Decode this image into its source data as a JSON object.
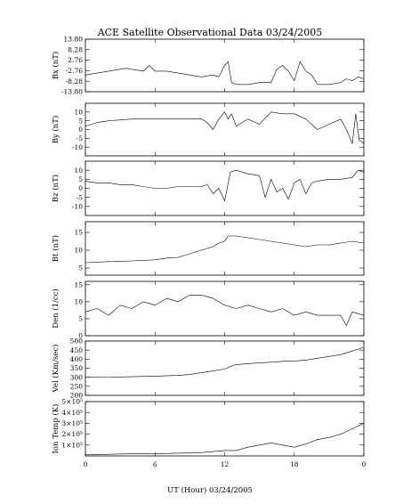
{
  "chart_data": {
    "type": "line",
    "title": "ACE Satellite Observational Data   03/24/2005",
    "xlabel": "UT (Hour)  03/24/2005",
    "x_ticks": [
      "0",
      "6",
      "12",
      "18",
      "0"
    ],
    "xlim": [
      0,
      24
    ],
    "panels": [
      {
        "name": "bx",
        "ylabel": "Bx (nT)",
        "ylim": [
          -13.8,
          13.8
        ],
        "y_ticks": [
          -13.8,
          -8.28,
          -2.76,
          2.76,
          8.28,
          13.8
        ],
        "y_tick_labels": [
          "-13.80",
          "-8.28",
          "-2.76",
          "2.76",
          "8.28",
          "13.80"
        ],
        "x": [
          0,
          1,
          2,
          3,
          3.5,
          4,
          5,
          5.5,
          6,
          7,
          8,
          9,
          10,
          11,
          11.5,
          12,
          12.3,
          12.6,
          13,
          14,
          15,
          16,
          16.5,
          17,
          17.5,
          18,
          18.5,
          19,
          19.5,
          20,
          21,
          22,
          22.5,
          23,
          23.5,
          24
        ],
        "y": [
          -5,
          -4,
          -3,
          -2,
          -1.5,
          -2,
          -3,
          0,
          -3,
          -3,
          -4,
          -5,
          -6,
          -5,
          -6,
          0,
          2,
          -9,
          -10,
          -10,
          -9,
          -9,
          -2,
          0,
          -3,
          -8,
          2,
          -3,
          -5,
          -10,
          -10,
          -9,
          -7,
          -8,
          -6,
          -7
        ]
      },
      {
        "name": "by",
        "ylabel": "By (nT)",
        "ylim": [
          -15,
          15
        ],
        "y_ticks": [
          -10,
          -5,
          0,
          5,
          10
        ],
        "y_tick_labels": [
          "-10",
          "-5",
          "0",
          "5",
          "10"
        ],
        "x": [
          0,
          1,
          2,
          3,
          4,
          5,
          6,
          7,
          8,
          9,
          10,
          10.5,
          11,
          11.5,
          12,
          12.3,
          12.6,
          13,
          14,
          15,
          16,
          17,
          18,
          19,
          20,
          21,
          22,
          22.5,
          23,
          23.3,
          23.6,
          24
        ],
        "y": [
          2,
          4,
          5,
          5.5,
          6,
          6,
          6,
          6,
          6,
          6,
          6,
          4,
          0,
          6,
          10,
          6,
          9,
          2,
          6,
          3,
          10,
          9,
          9,
          6,
          0,
          3,
          6,
          0,
          -8,
          9,
          -6,
          -8
        ]
      },
      {
        "name": "bz",
        "ylabel": "Bz (nT)",
        "ylim": [
          -15,
          15
        ],
        "y_ticks": [
          -10,
          -5,
          0,
          5,
          10
        ],
        "y_tick_labels": [
          "-10",
          "-5",
          "0",
          "5",
          "10"
        ],
        "x": [
          0,
          1,
          2,
          3,
          4,
          5,
          6,
          7,
          8,
          9,
          10,
          10.5,
          11,
          11.5,
          12,
          12.5,
          13,
          14,
          15,
          15.5,
          16,
          16.5,
          17,
          17.5,
          18,
          18.5,
          19,
          19.5,
          20,
          21,
          22,
          23,
          23.5,
          24
        ],
        "y": [
          4,
          3,
          3,
          2,
          2,
          1,
          0,
          0,
          1,
          1,
          1,
          2,
          -3,
          0,
          -7,
          9,
          10,
          8,
          7,
          -5,
          5,
          -2,
          0,
          -6,
          3,
          5,
          -3,
          3,
          4,
          5,
          5,
          6,
          10,
          9
        ]
      },
      {
        "name": "bt",
        "ylabel": "Bt (nT)",
        "ylim": [
          3,
          18
        ],
        "y_ticks": [
          5,
          10,
          15
        ],
        "y_tick_labels": [
          "5",
          "10",
          "15"
        ],
        "x": [
          0,
          2,
          4,
          6,
          7,
          8,
          9,
          10,
          11,
          11.5,
          12,
          12.3,
          13,
          14,
          15,
          16,
          17,
          18,
          19,
          20,
          21,
          22,
          23,
          24
        ],
        "y": [
          6.5,
          6.8,
          7,
          7.3,
          7.8,
          8,
          9,
          10,
          11,
          12,
          12.5,
          14,
          14,
          13.5,
          13,
          12.5,
          12,
          11.5,
          11,
          11.5,
          11.5,
          12,
          12.5,
          12
        ]
      },
      {
        "name": "den",
        "ylabel": "Den (1/cc)",
        "ylim": [
          0,
          16
        ],
        "y_ticks": [
          0,
          5,
          10,
          15
        ],
        "y_tick_labels": [
          "0",
          "5",
          "10",
          "15"
        ],
        "x": [
          0,
          1,
          2,
          3,
          4,
          5,
          6,
          7,
          8,
          9,
          10,
          11,
          12,
          13,
          14,
          15,
          16,
          17,
          18,
          19,
          20,
          21,
          22,
          22.5,
          23,
          24
        ],
        "y": [
          7,
          8,
          6,
          9,
          8,
          10,
          9,
          11,
          10,
          12,
          12,
          11,
          9,
          8,
          9,
          8,
          7,
          8,
          6,
          7,
          6,
          6,
          6,
          3,
          7,
          6
        ]
      },
      {
        "name": "vel",
        "ylabel": "Vel (Km/sec)",
        "ylim": [
          200,
          500
        ],
        "y_ticks": [
          200,
          250,
          300,
          350,
          400,
          450,
          500
        ],
        "y_tick_labels": [
          "200",
          "250",
          "300",
          "350",
          "400",
          "450",
          "500"
        ],
        "x": [
          0,
          2,
          4,
          6,
          8,
          9,
          10,
          11,
          12,
          12.5,
          13,
          14,
          15,
          16,
          17,
          18,
          19,
          20,
          21,
          22,
          23,
          24
        ],
        "y": [
          300,
          301,
          303,
          306,
          310,
          315,
          325,
          335,
          345,
          360,
          370,
          375,
          380,
          383,
          388,
          390,
          395,
          405,
          415,
          425,
          445,
          465
        ]
      },
      {
        "name": "temp",
        "ylabel": "Ion Temp (K)",
        "ylim": [
          0,
          500000
        ],
        "y_ticks": [
          100000,
          200000,
          300000,
          400000,
          500000
        ],
        "y_tick_labels": [
          "1×10⁵",
          "2×10⁵",
          "3×10⁵",
          "4×10⁵",
          "5×10⁵"
        ],
        "x": [
          0,
          2,
          4,
          6,
          8,
          10,
          11,
          12,
          13,
          14,
          15,
          16,
          17,
          18,
          19,
          20,
          21,
          22,
          23,
          24
        ],
        "y": [
          10000,
          15000,
          20000,
          20000,
          25000,
          30000,
          40000,
          50000,
          50000,
          80000,
          100000,
          120000,
          100000,
          80000,
          110000,
          150000,
          170000,
          200000,
          250000,
          300000
        ]
      }
    ]
  }
}
